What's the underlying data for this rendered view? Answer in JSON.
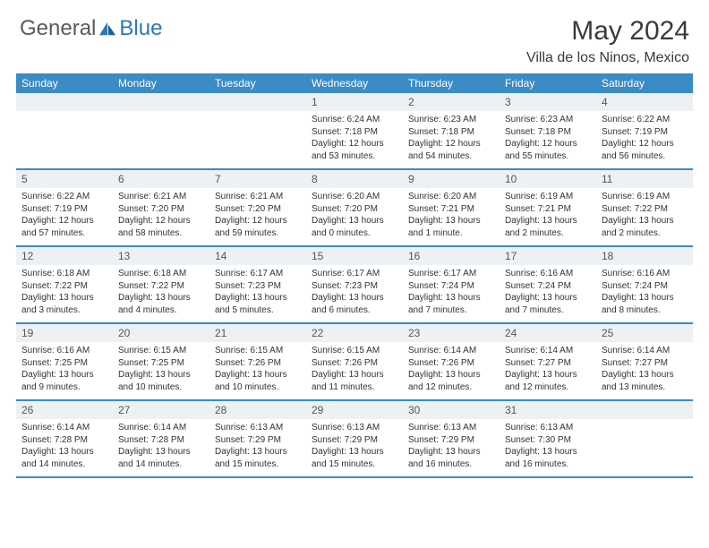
{
  "brand": {
    "general": "General",
    "blue": "Blue"
  },
  "title": "May 2024",
  "location": "Villa de los Ninos, Mexico",
  "colors": {
    "header_bg": "#3b8bc4",
    "daynum_bg": "#eef1f4",
    "text": "#333333",
    "brand_gray": "#5a5a5a",
    "brand_blue": "#2a7ab8"
  },
  "weekdays": [
    "Sunday",
    "Monday",
    "Tuesday",
    "Wednesday",
    "Thursday",
    "Friday",
    "Saturday"
  ],
  "weeks": [
    [
      null,
      null,
      null,
      {
        "n": "1",
        "sr": "6:24 AM",
        "ss": "7:18 PM",
        "dl": "12 hours and 53 minutes."
      },
      {
        "n": "2",
        "sr": "6:23 AM",
        "ss": "7:18 PM",
        "dl": "12 hours and 54 minutes."
      },
      {
        "n": "3",
        "sr": "6:23 AM",
        "ss": "7:18 PM",
        "dl": "12 hours and 55 minutes."
      },
      {
        "n": "4",
        "sr": "6:22 AM",
        "ss": "7:19 PM",
        "dl": "12 hours and 56 minutes."
      }
    ],
    [
      {
        "n": "5",
        "sr": "6:22 AM",
        "ss": "7:19 PM",
        "dl": "12 hours and 57 minutes."
      },
      {
        "n": "6",
        "sr": "6:21 AM",
        "ss": "7:20 PM",
        "dl": "12 hours and 58 minutes."
      },
      {
        "n": "7",
        "sr": "6:21 AM",
        "ss": "7:20 PM",
        "dl": "12 hours and 59 minutes."
      },
      {
        "n": "8",
        "sr": "6:20 AM",
        "ss": "7:20 PM",
        "dl": "13 hours and 0 minutes."
      },
      {
        "n": "9",
        "sr": "6:20 AM",
        "ss": "7:21 PM",
        "dl": "13 hours and 1 minute."
      },
      {
        "n": "10",
        "sr": "6:19 AM",
        "ss": "7:21 PM",
        "dl": "13 hours and 2 minutes."
      },
      {
        "n": "11",
        "sr": "6:19 AM",
        "ss": "7:22 PM",
        "dl": "13 hours and 2 minutes."
      }
    ],
    [
      {
        "n": "12",
        "sr": "6:18 AM",
        "ss": "7:22 PM",
        "dl": "13 hours and 3 minutes."
      },
      {
        "n": "13",
        "sr": "6:18 AM",
        "ss": "7:22 PM",
        "dl": "13 hours and 4 minutes."
      },
      {
        "n": "14",
        "sr": "6:17 AM",
        "ss": "7:23 PM",
        "dl": "13 hours and 5 minutes."
      },
      {
        "n": "15",
        "sr": "6:17 AM",
        "ss": "7:23 PM",
        "dl": "13 hours and 6 minutes."
      },
      {
        "n": "16",
        "sr": "6:17 AM",
        "ss": "7:24 PM",
        "dl": "13 hours and 7 minutes."
      },
      {
        "n": "17",
        "sr": "6:16 AM",
        "ss": "7:24 PM",
        "dl": "13 hours and 7 minutes."
      },
      {
        "n": "18",
        "sr": "6:16 AM",
        "ss": "7:24 PM",
        "dl": "13 hours and 8 minutes."
      }
    ],
    [
      {
        "n": "19",
        "sr": "6:16 AM",
        "ss": "7:25 PM",
        "dl": "13 hours and 9 minutes."
      },
      {
        "n": "20",
        "sr": "6:15 AM",
        "ss": "7:25 PM",
        "dl": "13 hours and 10 minutes."
      },
      {
        "n": "21",
        "sr": "6:15 AM",
        "ss": "7:26 PM",
        "dl": "13 hours and 10 minutes."
      },
      {
        "n": "22",
        "sr": "6:15 AM",
        "ss": "7:26 PM",
        "dl": "13 hours and 11 minutes."
      },
      {
        "n": "23",
        "sr": "6:14 AM",
        "ss": "7:26 PM",
        "dl": "13 hours and 12 minutes."
      },
      {
        "n": "24",
        "sr": "6:14 AM",
        "ss": "7:27 PM",
        "dl": "13 hours and 12 minutes."
      },
      {
        "n": "25",
        "sr": "6:14 AM",
        "ss": "7:27 PM",
        "dl": "13 hours and 13 minutes."
      }
    ],
    [
      {
        "n": "26",
        "sr": "6:14 AM",
        "ss": "7:28 PM",
        "dl": "13 hours and 14 minutes."
      },
      {
        "n": "27",
        "sr": "6:14 AM",
        "ss": "7:28 PM",
        "dl": "13 hours and 14 minutes."
      },
      {
        "n": "28",
        "sr": "6:13 AM",
        "ss": "7:29 PM",
        "dl": "13 hours and 15 minutes."
      },
      {
        "n": "29",
        "sr": "6:13 AM",
        "ss": "7:29 PM",
        "dl": "13 hours and 15 minutes."
      },
      {
        "n": "30",
        "sr": "6:13 AM",
        "ss": "7:29 PM",
        "dl": "13 hours and 16 minutes."
      },
      {
        "n": "31",
        "sr": "6:13 AM",
        "ss": "7:30 PM",
        "dl": "13 hours and 16 minutes."
      },
      null
    ]
  ],
  "labels": {
    "sunrise": "Sunrise:",
    "sunset": "Sunset:",
    "daylight": "Daylight:"
  }
}
